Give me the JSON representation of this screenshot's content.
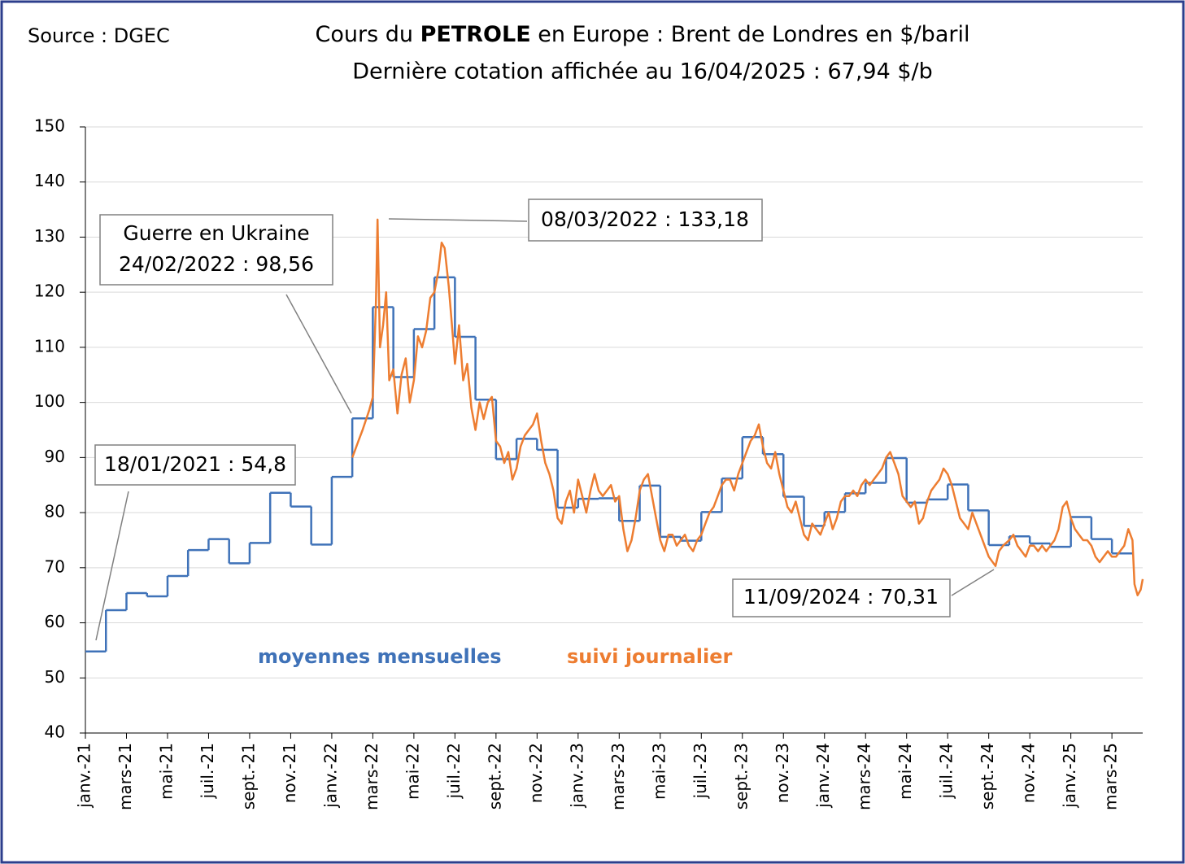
{
  "chart_data": {
    "type": "line",
    "source": "Source : DGEC",
    "title": [
      "Cours du ",
      "PETROLE",
      " en Europe : Brent de Londres en $/baril"
    ],
    "subtitle": "Dernière cotation affichée au 16/04/2025 : 67,94 $/b",
    "annotations": [
      "18/01/2021 : 54,8",
      "Guerre en Ukraine",
      "24/02/2022 : 98,56",
      "08/03/2022 : 133,18",
      "11/09/2024 : 70,31"
    ],
    "xlim": [
      0,
      51.5
    ],
    "xticks": [
      {
        "value": 0,
        "label": "janv.-21"
      },
      {
        "value": 2,
        "label": "mars-21"
      },
      {
        "value": 4,
        "label": "mai-21"
      },
      {
        "value": 6,
        "label": "juil.-21"
      },
      {
        "value": 8,
        "label": "sept.-21"
      },
      {
        "value": 10,
        "label": "nov.-21"
      },
      {
        "value": 12,
        "label": "janv.-22"
      },
      {
        "value": 14,
        "label": "mars-22"
      },
      {
        "value": 16,
        "label": "mai-22"
      },
      {
        "value": 18,
        "label": "juil.-22"
      },
      {
        "value": 20,
        "label": "sept.-22"
      },
      {
        "value": 22,
        "label": "nov.-22"
      },
      {
        "value": 24,
        "label": "janv.-23"
      },
      {
        "value": 26,
        "label": "mars-23"
      },
      {
        "value": 28,
        "label": "mai-23"
      },
      {
        "value": 30,
        "label": "juil.-23"
      },
      {
        "value": 32,
        "label": "sept.-23"
      },
      {
        "value": 34,
        "label": "nov.-23"
      },
      {
        "value": 36,
        "label": "janv.-24"
      },
      {
        "value": 38,
        "label": "mars-24"
      },
      {
        "value": 40,
        "label": "mai-24"
      },
      {
        "value": 42,
        "label": "juil.-24"
      },
      {
        "value": 44,
        "label": "sept.-24"
      },
      {
        "value": 46,
        "label": "nov.-24"
      },
      {
        "value": 48,
        "label": "janv.-25"
      },
      {
        "value": 50,
        "label": "mars-25"
      }
    ],
    "ylim": [
      40,
      150
    ],
    "yticks": [
      40,
      50,
      60,
      70,
      80,
      90,
      100,
      110,
      120,
      130,
      140,
      150
    ],
    "grid": true,
    "series": [
      {
        "name": "moyennes mensuelles",
        "color": "#3f72b8",
        "step": true,
        "x": [
          0,
          1,
          2,
          3,
          4,
          5,
          6,
          7,
          8,
          9,
          10,
          11,
          12,
          13,
          14,
          15,
          16,
          17,
          18,
          19,
          20,
          21,
          22,
          23,
          24,
          25,
          26,
          27,
          28,
          29,
          30,
          31,
          32,
          33,
          34,
          35,
          36,
          37,
          38,
          39,
          40,
          41,
          42,
          43,
          44,
          45,
          46,
          47,
          48,
          49,
          50
        ],
        "values": [
          54.8,
          62.3,
          65.4,
          64.8,
          68.5,
          73.2,
          75.2,
          70.8,
          74.5,
          83.6,
          81.1,
          74.2,
          86.5,
          97.1,
          117.3,
          104.6,
          113.3,
          122.7,
          111.9,
          100.5,
          89.7,
          93.4,
          91.4,
          80.9,
          82.5,
          82.6,
          78.5,
          84.9,
          75.6,
          74.9,
          80.1,
          86.2,
          93.7,
          90.6,
          82.9,
          77.6,
          80.1,
          83.5,
          85.4,
          89.9,
          81.8,
          82.4,
          85.1,
          80.4,
          74.1,
          75.7,
          74.4,
          73.8,
          79.2,
          75.2,
          72.6
        ]
      },
      {
        "name": "suivi journalier",
        "color": "#ed7d31",
        "step": false,
        "x": [
          13.0,
          13.3,
          13.5,
          13.82,
          14.0,
          14.15,
          14.23,
          14.35,
          14.5,
          14.65,
          14.8,
          15.0,
          15.2,
          15.4,
          15.6,
          15.8,
          16.0,
          16.2,
          16.4,
          16.6,
          16.8,
          17.0,
          17.2,
          17.35,
          17.5,
          17.7,
          17.9,
          18.0,
          18.2,
          18.4,
          18.6,
          18.8,
          19.0,
          19.2,
          19.4,
          19.6,
          19.8,
          20.0,
          20.2,
          20.4,
          20.6,
          20.8,
          21.0,
          21.2,
          21.4,
          21.6,
          21.8,
          22.0,
          22.2,
          22.4,
          22.6,
          22.8,
          23.0,
          23.2,
          23.4,
          23.6,
          23.8,
          24.0,
          24.2,
          24.4,
          24.6,
          24.8,
          25.0,
          25.2,
          25.4,
          25.6,
          25.8,
          26.0,
          26.2,
          26.4,
          26.6,
          26.8,
          27.0,
          27.2,
          27.4,
          27.6,
          27.8,
          28.0,
          28.2,
          28.4,
          28.6,
          28.8,
          29.0,
          29.2,
          29.4,
          29.6,
          29.8,
          30.0,
          30.2,
          30.4,
          30.6,
          30.8,
          31.0,
          31.2,
          31.4,
          31.6,
          31.8,
          32.0,
          32.2,
          32.4,
          32.6,
          32.8,
          33.0,
          33.2,
          33.4,
          33.6,
          33.8,
          34.0,
          34.2,
          34.4,
          34.6,
          34.8,
          35.0,
          35.2,
          35.4,
          35.6,
          35.8,
          36.0,
          36.2,
          36.4,
          36.6,
          36.8,
          37.0,
          37.2,
          37.4,
          37.6,
          37.8,
          38.0,
          38.2,
          38.4,
          38.6,
          38.8,
          39.0,
          39.2,
          39.4,
          39.6,
          39.8,
          40.0,
          40.2,
          40.4,
          40.6,
          40.8,
          41.0,
          41.2,
          41.4,
          41.6,
          41.8,
          42.0,
          42.2,
          42.4,
          42.6,
          42.8,
          43.0,
          43.2,
          43.4,
          43.6,
          43.8,
          44.0,
          44.33,
          44.5,
          44.7,
          45.0,
          45.2,
          45.4,
          45.6,
          45.8,
          46.0,
          46.2,
          46.4,
          46.6,
          46.8,
          47.0,
          47.2,
          47.4,
          47.6,
          47.8,
          48.0,
          48.2,
          48.4,
          48.6,
          48.8,
          49.0,
          49.2,
          49.4,
          49.6,
          49.8,
          50.0,
          50.2,
          50.4,
          50.6,
          50.8,
          51.0,
          51.1,
          51.25,
          51.4,
          51.5
        ],
        "values": [
          90,
          93,
          95,
          98.56,
          101,
          118,
          133.18,
          110,
          114,
          120,
          104,
          106,
          98,
          105,
          108,
          100,
          104,
          112,
          110,
          113,
          119,
          120,
          124,
          129,
          128,
          121,
          112,
          107,
          114,
          104,
          107,
          99,
          95,
          100,
          97,
          100,
          101,
          93,
          92,
          89,
          91,
          86,
          88,
          92,
          94,
          95,
          96,
          98,
          93,
          89,
          87,
          84,
          79,
          78,
          82,
          84,
          80,
          86,
          83,
          80,
          84,
          87,
          84,
          83,
          84,
          85,
          82,
          83,
          77,
          73,
          75,
          79,
          84,
          86,
          87,
          83,
          79,
          75,
          73,
          76,
          76,
          74,
          75,
          76,
          74,
          73,
          75,
          76,
          78,
          80,
          81,
          83,
          85,
          86,
          86,
          84,
          87,
          89,
          91,
          93,
          94,
          96,
          92,
          89,
          88,
          91,
          87,
          84,
          81,
          80,
          82,
          79,
          76,
          75,
          78,
          77,
          76,
          78,
          80,
          77,
          79,
          82,
          83,
          83,
          84,
          83,
          85,
          86,
          85,
          86,
          87,
          88,
          90,
          91,
          89,
          87,
          83,
          82,
          81,
          82,
          78,
          79,
          82,
          84,
          85,
          86,
          88,
          87,
          85,
          82,
          79,
          78,
          77,
          80,
          78,
          76,
          74,
          72,
          70.31,
          73,
          74,
          75,
          76,
          74,
          73,
          72,
          74,
          74,
          73,
          74,
          73,
          74,
          75,
          77,
          81,
          82,
          79,
          77,
          76,
          75,
          75,
          74,
          72,
          71,
          72,
          73,
          72,
          72,
          73,
          74,
          77,
          75,
          67,
          65,
          66,
          67.94
        ]
      }
    ]
  }
}
